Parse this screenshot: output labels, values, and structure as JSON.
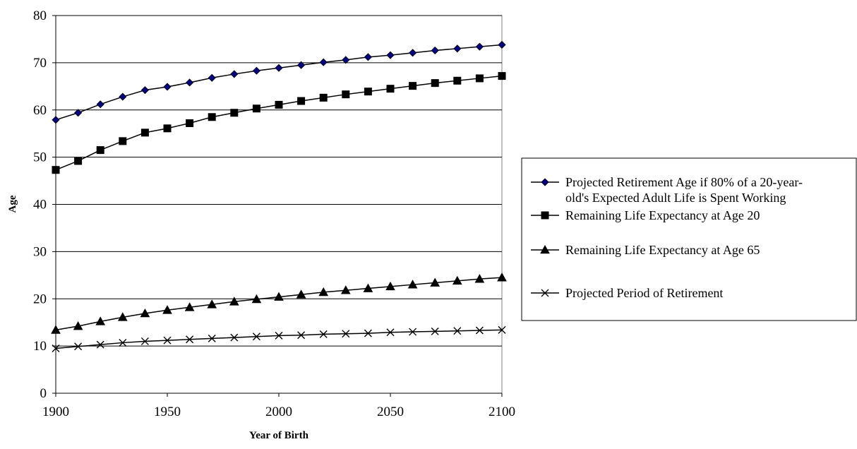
{
  "chart_data": {
    "type": "line",
    "title": "",
    "xlabel": "Year of Birth",
    "ylabel": "Age",
    "xlim": [
      1900,
      2100
    ],
    "ylim": [
      0,
      80
    ],
    "x_ticks": [
      "1900",
      "1950",
      "2000",
      "2050",
      "2100"
    ],
    "y_ticks": [
      "0",
      "10",
      "20",
      "30",
      "40",
      "50",
      "60",
      "70",
      "80"
    ],
    "grid": "horizontal major gridlines",
    "legend_position": "right",
    "x": [
      1900,
      1910,
      1920,
      1930,
      1940,
      1950,
      1960,
      1970,
      1980,
      1990,
      2000,
      2010,
      2020,
      2030,
      2040,
      2050,
      2060,
      2070,
      2080,
      2090,
      2100
    ],
    "series": [
      {
        "name": "Projected Retirement Age if 80% of a 20-year-old's Expected Adult Life is Spent Working",
        "name_lines": [
          "Projected Retirement Age if 80% of a 20-year-",
          "old's Expected Adult Life is Spent Working"
        ],
        "marker": "diamond",
        "color": "#000080",
        "values": [
          57.9,
          59.4,
          61.2,
          62.8,
          64.2,
          64.9,
          65.8,
          66.8,
          67.6,
          68.3,
          68.9,
          69.5,
          70.1,
          70.6,
          71.2,
          71.6,
          72.1,
          72.6,
          73.0,
          73.4,
          73.8
        ]
      },
      {
        "name": "Remaining Life Expectancy at Age 20",
        "name_lines": [
          "Remaining Life Expectancy at Age 20"
        ],
        "marker": "square",
        "color": "#000000",
        "values": [
          47.3,
          49.2,
          51.5,
          53.4,
          55.2,
          56.1,
          57.2,
          58.5,
          59.4,
          60.3,
          61.1,
          61.9,
          62.6,
          63.3,
          63.9,
          64.5,
          65.1,
          65.7,
          66.2,
          66.7,
          67.2
        ]
      },
      {
        "name": "Remaining Life Expectancy at Age 65",
        "name_lines": [
          "Remaining Life Expectancy at Age 65"
        ],
        "marker": "triangle",
        "color": "#000000",
        "values": [
          13.4,
          14.2,
          15.2,
          16.1,
          16.9,
          17.6,
          18.2,
          18.8,
          19.4,
          19.9,
          20.4,
          20.9,
          21.4,
          21.8,
          22.2,
          22.6,
          23.0,
          23.4,
          23.8,
          24.2,
          24.5
        ]
      },
      {
        "name": "Projected Period of Retirement",
        "name_lines": [
          "Projected Period of Retirement"
        ],
        "marker": "x",
        "color": "#000000",
        "values": [
          9.5,
          9.9,
          10.3,
          10.7,
          11.0,
          11.2,
          11.4,
          11.6,
          11.8,
          12.0,
          12.2,
          12.3,
          12.5,
          12.6,
          12.7,
          12.9,
          13.0,
          13.1,
          13.2,
          13.3,
          13.4
        ]
      }
    ]
  }
}
